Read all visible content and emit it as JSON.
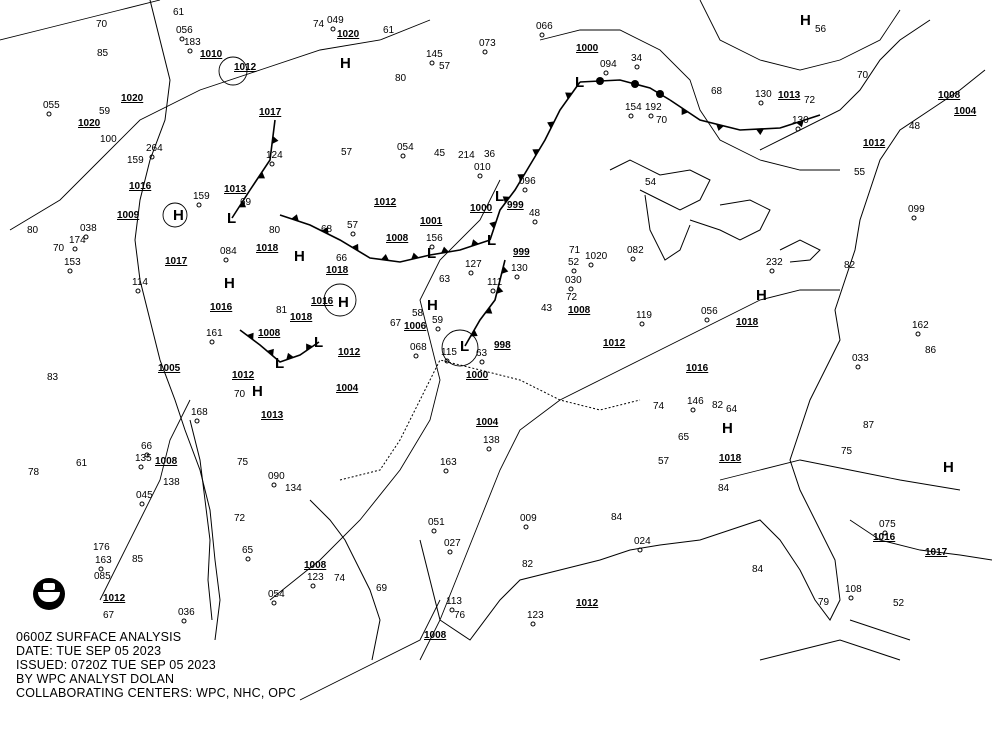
{
  "caption": {
    "lines": [
      "0600Z SURFACE ANALYSIS",
      "DATE: TUE SEP 05 2023",
      "ISSUED: 0720Z TUE SEP 05 2023",
      "BY WPC ANALYST DOLAN",
      "COLLABORATING CENTERS: WPC, NHC, OPC"
    ]
  },
  "logo": {
    "name": "NOAA logo"
  },
  "pressure_centers": {
    "highs": [
      "H",
      "H",
      "H",
      "H",
      "H",
      "H",
      "H",
      "H",
      "H",
      "H",
      "H"
    ],
    "lows": [
      "L",
      "L",
      "L",
      "L",
      "L",
      "L",
      "L",
      "L"
    ]
  },
  "isobar_labels": [
    "1020",
    "1010",
    "1012",
    "1017",
    "1013",
    "1016",
    "1009",
    "1018",
    "1018",
    "1016",
    "1017",
    "1008",
    "1005",
    "1012",
    "1013",
    "1016",
    "1018",
    "1012",
    "1004",
    "1006",
    "1012",
    "1008",
    "1001",
    "1000",
    "999",
    "999",
    "998",
    "1000",
    "1004",
    "1008",
    "1012",
    "1016",
    "1018",
    "1018",
    "1016",
    "1017",
    "1013",
    "1000",
    "1008",
    "1008",
    "1012",
    "1012",
    "1020",
    "1020",
    "1008",
    "1004",
    "1008",
    "1012"
  ],
  "station_values": [
    "63",
    "159",
    "59",
    "176",
    "52",
    "134",
    "34",
    "36",
    "192",
    "43",
    "183",
    "52",
    "114",
    "48",
    "068",
    "54",
    "036",
    "45",
    "48",
    "138",
    "57",
    "085",
    "65",
    "214",
    "1020",
    "64",
    "264",
    "57",
    "153",
    "74",
    "099",
    "58",
    "051",
    "63",
    "124",
    "68",
    "090",
    "79",
    "075",
    "82",
    "066",
    "68",
    "084",
    "57",
    "054",
    "80",
    "030",
    "67",
    "027",
    "72",
    "045",
    "55",
    "055",
    "65",
    "024",
    "72",
    "056",
    "70",
    "009",
    "72",
    "073",
    "81",
    "038",
    "69",
    "130",
    "61",
    "094",
    "80",
    "127",
    "78",
    "163",
    "74",
    "146",
    "80",
    "163",
    "85",
    "159",
    "83",
    "156",
    "82",
    "130",
    "85",
    "119",
    "87",
    "113",
    "82",
    "138",
    "84",
    "123",
    "84",
    "145",
    "86",
    "082",
    "84",
    "111",
    "75",
    "174",
    "76",
    "154",
    "70",
    "161",
    "74",
    "162",
    "70",
    "168",
    "75",
    "123",
    "71",
    "130",
    "66",
    "033",
    "59",
    "010",
    "67",
    "049",
    "61",
    "115",
    "70",
    "054",
    "61",
    "135",
    "56",
    "096",
    "57",
    "056",
    "70",
    "108",
    "69",
    "232",
    "100",
    "66"
  ],
  "colors": {
    "ink": "#000000",
    "background": "#ffffff"
  }
}
